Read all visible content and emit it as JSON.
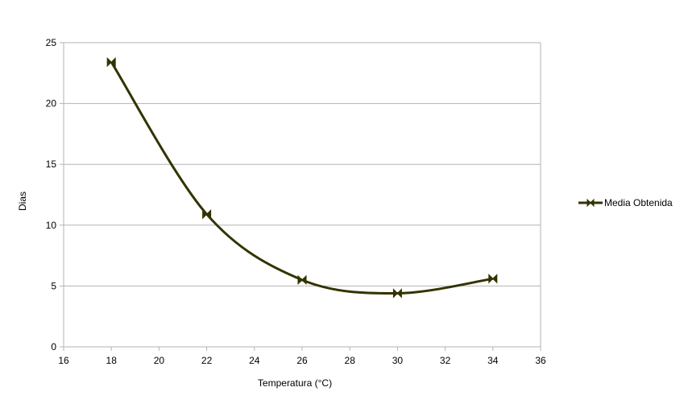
{
  "chart_data": {
    "type": "scatter",
    "title": "",
    "xlabel": "Temperatura (°C)",
    "ylabel": "Dias",
    "xlim": [
      16,
      36
    ],
    "ylim": [
      0,
      25
    ],
    "x_ticks": [
      16,
      18,
      20,
      22,
      24,
      26,
      28,
      30,
      32,
      34,
      36
    ],
    "y_ticks": [
      0,
      5,
      10,
      15,
      20,
      25
    ],
    "grid": "horizontal",
    "legend_position": "right",
    "series": [
      {
        "name": "Media Obtenida",
        "color": "#333300",
        "line": "smooth",
        "marker": "bowtie",
        "x": [
          18,
          22,
          26,
          30,
          34
        ],
        "y": [
          23.4,
          10.9,
          5.5,
          4.4,
          5.6
        ]
      }
    ]
  }
}
